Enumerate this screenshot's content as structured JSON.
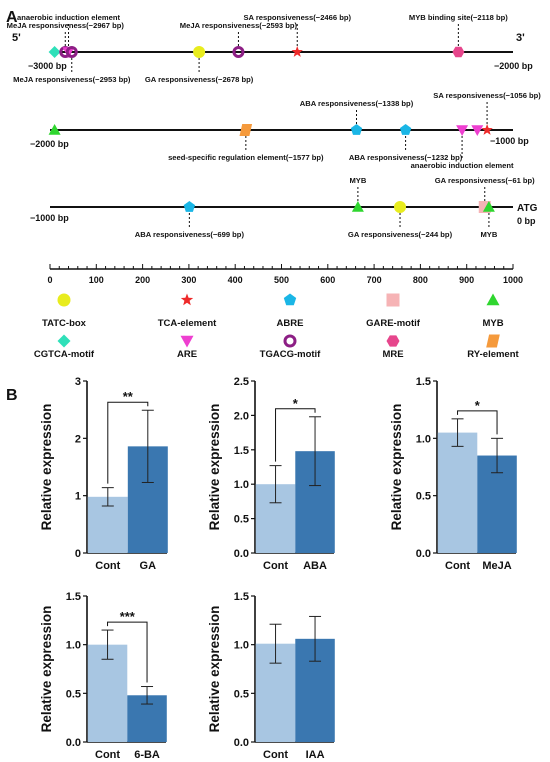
{
  "panel_a": {
    "label": "A",
    "promoter_rows": [
      {
        "left_label": "−3000 bp",
        "right_label": "−2000 bp",
        "start_bp": -3000,
        "end_bp": -2000,
        "end_5": "5'",
        "end_3": "3'",
        "elements": [
          {
            "type": "CGTCA-motif",
            "pos_bp": -2990,
            "label": ""
          },
          {
            "type": "TGACG-motif",
            "pos_bp": -2967,
            "label": "MeJA responsiveness(−2967 bp)",
            "side": "above",
            "level": 1
          },
          {
            "type": "ARE",
            "pos_bp": -2960,
            "label": "anaerobic induction element",
            "side": "above",
            "level": 2
          },
          {
            "type": "TGACG-motif",
            "pos_bp": -2953,
            "label": "MeJA responsiveness(−2953 bp)",
            "side": "below",
            "level": 1
          },
          {
            "type": "TATC-box",
            "pos_bp": -2678,
            "label": "GA responsiveness(−2678 bp)",
            "side": "below",
            "level": 1
          },
          {
            "type": "TGACG-motif",
            "pos_bp": -2593,
            "label": "MeJA responsiveness(−2593 bp)",
            "side": "above",
            "level": 1
          },
          {
            "type": "TCA-element",
            "pos_bp": -2466,
            "label": "SA responsiveness(−2466 bp)",
            "side": "above",
            "level": 2
          },
          {
            "type": "MRE",
            "pos_bp": -2118,
            "label": "MYB binding site(−2118 bp)",
            "side": "above",
            "level": 2
          }
        ]
      },
      {
        "left_label": "−2000 bp",
        "right_label": "−1000 bp",
        "start_bp": -2000,
        "end_bp": -1000,
        "elements": [
          {
            "type": "MYB",
            "pos_bp": -1990,
            "label": ""
          },
          {
            "type": "RY-element",
            "pos_bp": -1577,
            "label": "seed-specific regulation element(−1577 bp)",
            "side": "below",
            "level": 1
          },
          {
            "type": "ABRE",
            "pos_bp": -1338,
            "label": "ABA responsiveness(−1338 bp)",
            "side": "above",
            "level": 1
          },
          {
            "type": "ABRE",
            "pos_bp": -1232,
            "label": "ABA responsiveness(−1232 bp)",
            "side": "below",
            "level": 1
          },
          {
            "type": "ARE",
            "pos_bp": -1110,
            "label": "anaerobic induction element",
            "side": "below",
            "level": 2
          },
          {
            "type": "ARE",
            "pos_bp": -1077,
            "label": ""
          },
          {
            "type": "TCA-element",
            "pos_bp": -1056,
            "label": "SA responsiveness(−1056 bp)",
            "side": "above",
            "level": 2
          }
        ]
      },
      {
        "left_label": "−1000 bp",
        "right_label": "0 bp",
        "start_bp": -1000,
        "end_bp": 0,
        "end_3": "ATG",
        "elements": [
          {
            "type": "ABRE",
            "pos_bp": -699,
            "label": "ABA responsiveness(−699 bp)",
            "side": "below",
            "level": 1
          },
          {
            "type": "MYB",
            "pos_bp": -335,
            "label": "MYB",
            "side": "above",
            "level": 1
          },
          {
            "type": "TATC-box",
            "pos_bp": -244,
            "label": "GA responsiveness(−244 bp)",
            "side": "below",
            "level": 1
          },
          {
            "type": "GARE-motif",
            "pos_bp": -61,
            "label": "GA responsiveness(−61 bp)",
            "side": "above",
            "level": 1
          },
          {
            "type": "MYB",
            "pos_bp": -52,
            "label": "MYB",
            "side": "below",
            "level": 1
          }
        ]
      }
    ],
    "scale": {
      "ticks": [
        "0",
        "100",
        "200",
        "300",
        "400",
        "500",
        "600",
        "700",
        "800",
        "900",
        "1000"
      ]
    },
    "legend": [
      {
        "type": "TATC-box",
        "shape": "circle",
        "color": "#e8ec1e",
        "label": "TATC-box"
      },
      {
        "type": "TCA-element",
        "shape": "star",
        "color": "#ee2a2a",
        "label": "TCA-element"
      },
      {
        "type": "ABRE",
        "shape": "pentagon",
        "color": "#1ab6e6",
        "label": "ABRE"
      },
      {
        "type": "GARE-motif",
        "shape": "square",
        "color": "#f6b3b5",
        "label": "GARE-motif"
      },
      {
        "type": "MYB",
        "shape": "triangle-up",
        "color": "#2fd62f",
        "label": "MYB"
      },
      {
        "type": "CGTCA-motif",
        "shape": "diamond",
        "color": "#2fe0b9",
        "label": "CGTCA-motif"
      },
      {
        "type": "ARE",
        "shape": "triangle-down",
        "color": "#ee3fd0",
        "label": "ARE"
      },
      {
        "type": "TGACG-motif",
        "shape": "ring",
        "color": "#8d1f85",
        "label": "TGACG-motif"
      },
      {
        "type": "MRE",
        "shape": "hexagon",
        "color": "#e6468c",
        "label": "MRE"
      },
      {
        "type": "RY-element",
        "shape": "parallelogram",
        "color": "#f59a3c",
        "label": "RY-element"
      }
    ]
  },
  "panel_b": {
    "label": "B",
    "colors": {
      "control": "#a8c6e2",
      "treatment": "#3a77b0"
    }
  },
  "chart_data": [
    {
      "type": "bar",
      "categories": [
        "Cont",
        "GA"
      ],
      "values": [
        0.98,
        1.86
      ],
      "error": [
        0.16,
        0.63
      ],
      "ylabel": "Relative expression",
      "ylim": [
        0,
        3
      ],
      "yticks": [
        "0",
        "1",
        "2",
        "3"
      ],
      "significance": "**"
    },
    {
      "type": "bar",
      "categories": [
        "Cont",
        "ABA"
      ],
      "values": [
        1.0,
        1.48
      ],
      "error": [
        0.27,
        0.5
      ],
      "ylabel": "Relative expression",
      "ylim": [
        0,
        2.5
      ],
      "yticks": [
        "0.0",
        "0.5",
        "1.0",
        "1.5",
        "2.0",
        "2.5"
      ],
      "significance": "*"
    },
    {
      "type": "bar",
      "categories": [
        "Cont",
        "MeJA"
      ],
      "values": [
        1.05,
        0.85
      ],
      "error": [
        0.12,
        0.15
      ],
      "ylabel": "Relative expression",
      "ylim": [
        0,
        1.5
      ],
      "yticks": [
        "0.0",
        "0.5",
        "1.0",
        "1.5"
      ],
      "significance": "*"
    },
    {
      "type": "bar",
      "categories": [
        "Cont",
        "6-BA"
      ],
      "values": [
        1.0,
        0.48
      ],
      "error": [
        0.15,
        0.09
      ],
      "ylabel": "Relative expression",
      "ylim": [
        0,
        1.5
      ],
      "yticks": [
        "0.0",
        "0.5",
        "1.0",
        "1.5"
      ],
      "significance": "***"
    },
    {
      "type": "bar",
      "categories": [
        "Cont",
        "IAA"
      ],
      "values": [
        1.01,
        1.06
      ],
      "error": [
        0.2,
        0.23
      ],
      "ylabel": "Relative expression",
      "ylim": [
        0,
        1.5
      ],
      "yticks": [
        "0.0",
        "0.5",
        "1.0",
        "1.5"
      ],
      "significance": ""
    }
  ]
}
